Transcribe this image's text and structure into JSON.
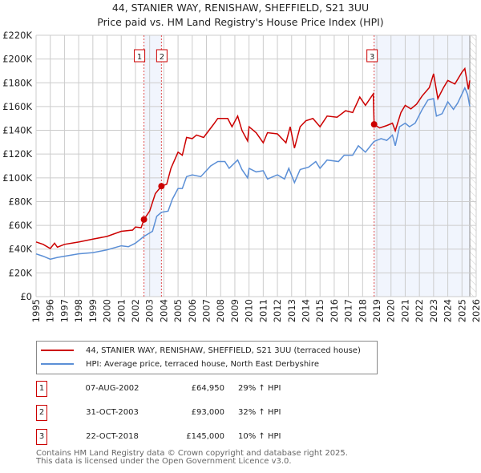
{
  "chart_data": {
    "type": "line",
    "title": "44, STANIER WAY, RENISHAW, SHEFFIELD, S21 3UU",
    "subtitle": "Price paid vs. HM Land Registry's House Price Index (HPI)",
    "xlim": [
      1995,
      2026
    ],
    "ylim": [
      0,
      220000
    ],
    "x_ticks": [
      "1995",
      "1996",
      "1997",
      "1998",
      "1999",
      "2000",
      "2001",
      "2002",
      "2003",
      "2004",
      "2005",
      "2006",
      "2007",
      "2008",
      "2009",
      "2010",
      "2011",
      "2012",
      "2013",
      "2014",
      "2015",
      "2016",
      "2017",
      "2018",
      "2019",
      "2020",
      "2021",
      "2022",
      "2023",
      "2024",
      "2025",
      "2026"
    ],
    "y_ticks": [
      "£0",
      "£20K",
      "£40K",
      "£60K",
      "£80K",
      "£100K",
      "£120K",
      "£140K",
      "£160K",
      "£180K",
      "£200K",
      "£220K"
    ],
    "grid": true,
    "series": [
      {
        "name": "44, STANIER WAY, RENISHAW, SHEFFIELD, S21 3UU (terraced house)",
        "color": "#cc0000",
        "x": [
          1995,
          1995.5,
          1996,
          1996.3,
          1996.5,
          1997,
          1998,
          1999,
          2000,
          2001,
          2001.8,
          2002,
          2002.4,
          2002.6,
          2003,
          2003.4,
          2003.83,
          2004.2,
          2004.5,
          2005,
          2005.3,
          2005.6,
          2006,
          2006.3,
          2006.8,
          2007.5,
          2007.8,
          2008.5,
          2008.8,
          2009.2,
          2009.5,
          2009.9,
          2010,
          2010.5,
          2011,
          2011.3,
          2012,
          2012.6,
          2012.9,
          2013.2,
          2013.6,
          2014,
          2014.5,
          2015,
          2015.5,
          2016.2,
          2016.8,
          2017.3,
          2017.8,
          2018.2,
          2018.75,
          2018.81,
          2019.2,
          2019.7,
          2020.1,
          2020.3,
          2020.7,
          2021,
          2021.4,
          2021.8,
          2022.2,
          2022.7,
          2023,
          2023.3,
          2023.7,
          2024,
          2024.5,
          2025,
          2025.2,
          2025.45,
          2025.55
        ],
        "y": [
          46,
          44,
          40.5,
          45,
          41.6,
          44,
          46,
          48.4,
          50.7,
          55,
          56,
          58.6,
          58,
          65,
          72,
          86.7,
          93,
          94.6,
          108,
          121.6,
          119,
          134,
          133,
          136,
          134,
          145,
          150,
          150,
          143,
          152,
          140,
          131,
          143,
          138,
          129.5,
          138,
          137,
          129.5,
          143,
          125,
          143,
          148,
          150,
          143,
          152,
          151,
          156.5,
          155,
          168,
          161,
          170.7,
          145,
          142,
          144,
          146,
          139.6,
          155,
          161,
          158,
          162,
          169,
          176,
          187.6,
          166.7,
          176,
          182,
          179,
          189,
          192,
          174.5,
          182
        ]
      },
      {
        "name": "HPI: Average price, terraced house, North East Derbyshire",
        "color": "#5b8fd6",
        "x": [
          1995,
          1995.5,
          1996,
          1996.5,
          1997,
          1998,
          1999,
          2000,
          2001,
          2001.5,
          2002,
          2002.6,
          2003.2,
          2003.5,
          2003.83,
          2004.3,
          2004.6,
          2005,
          2005.3,
          2005.6,
          2006,
          2006.6,
          2007.3,
          2007.8,
          2008.3,
          2008.6,
          2009.2,
          2009.5,
          2009.9,
          2010,
          2010.5,
          2011,
          2011.3,
          2012,
          2012.5,
          2012.8,
          2013.2,
          2013.6,
          2014.2,
          2014.7,
          2015,
          2015.5,
          2016.3,
          2016.7,
          2017.3,
          2017.7,
          2018.2,
          2018.8,
          2019.3,
          2019.7,
          2020.1,
          2020.3,
          2020.6,
          2021,
          2021.3,
          2021.7,
          2022.2,
          2022.6,
          2023,
          2023.2,
          2023.6,
          2024,
          2024.4,
          2024.7,
          2025.2,
          2025.4,
          2025.55
        ],
        "y": [
          36,
          34,
          31.5,
          33,
          34,
          36,
          37,
          39.4,
          42.8,
          42,
          45,
          50.7,
          55,
          67.6,
          71,
          72,
          82,
          91,
          91,
          101,
          102.5,
          101,
          110,
          113.7,
          113.7,
          108,
          115,
          107,
          100,
          108,
          105,
          106,
          99,
          102.5,
          99,
          108,
          96,
          107,
          109,
          113.7,
          108,
          115,
          113.7,
          119,
          119,
          127,
          121.6,
          130.6,
          133,
          131.5,
          136,
          127,
          143,
          146,
          143,
          146,
          157.6,
          165.5,
          166.7,
          152,
          154,
          164,
          157.6,
          163,
          175.7,
          170,
          160
        ]
      }
    ],
    "sales": [
      {
        "label": "1",
        "date": "07-AUG-2002",
        "price": "£64,950",
        "hpi": "29% ↑ HPI",
        "x": 2002.6,
        "y": 64.95
      },
      {
        "label": "2",
        "date": "31-OCT-2003",
        "price": "£93,000",
        "hpi": "32% ↑ HPI",
        "x": 2003.83,
        "y": 93
      },
      {
        "label": "3",
        "date": "22-OCT-2018",
        "price": "£145,000",
        "hpi": "10% ↑ HPI",
        "x": 2018.81,
        "y": 145
      }
    ],
    "shaded_ranges": [
      [
        2002.6,
        2003.83
      ],
      [
        2018.81,
        2025.55
      ]
    ],
    "data_end": 2025.55,
    "footer": [
      "Contains HM Land Registry data © Crown copyright and database right 2025.",
      "This data is licensed under the Open Government Licence v3.0."
    ]
  }
}
